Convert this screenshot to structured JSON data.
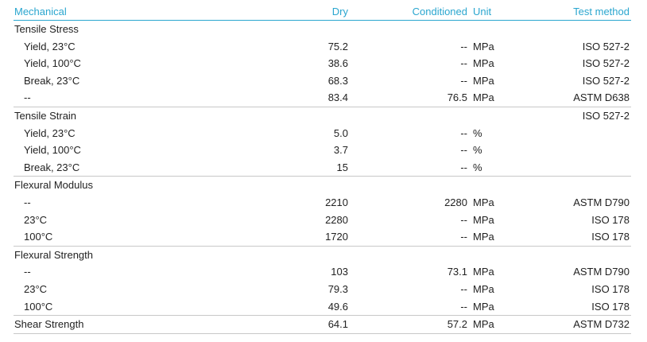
{
  "header": {
    "mechanical": "Mechanical",
    "dry": "Dry",
    "conditioned": "Conditioned",
    "unit": "Unit",
    "test_method": "Test method"
  },
  "rows": [
    {
      "label": "Tensile Stress",
      "dry": "",
      "conditioned": "",
      "unit": "",
      "test": ""
    },
    {
      "label": "Yield, 23°C",
      "dry": "75.2",
      "conditioned": "--",
      "unit": "MPa",
      "test": "ISO 527-2"
    },
    {
      "label": "Yield, 100°C",
      "dry": "38.6",
      "conditioned": "--",
      "unit": "MPa",
      "test": "ISO 527-2"
    },
    {
      "label": "Break, 23°C",
      "dry": "68.3",
      "conditioned": "--",
      "unit": "MPa",
      "test": "ISO 527-2"
    },
    {
      "label": "--",
      "dry": "83.4",
      "conditioned": "76.5",
      "unit": "MPa",
      "test": "ASTM D638"
    },
    {
      "label": "Tensile Strain",
      "dry": "",
      "conditioned": "",
      "unit": "",
      "test": "ISO 527-2"
    },
    {
      "label": "Yield, 23°C",
      "dry": "5.0",
      "conditioned": "--",
      "unit": "%",
      "test": ""
    },
    {
      "label": "Yield, 100°C",
      "dry": "3.7",
      "conditioned": "--",
      "unit": "%",
      "test": ""
    },
    {
      "label": "Break, 23°C",
      "dry": "15",
      "conditioned": "--",
      "unit": "%",
      "test": ""
    },
    {
      "label": "Flexural Modulus",
      "dry": "",
      "conditioned": "",
      "unit": "",
      "test": ""
    },
    {
      "label": "--",
      "dry": "2210",
      "conditioned": "2280",
      "unit": "MPa",
      "test": "ASTM D790"
    },
    {
      "label": "23°C",
      "dry": "2280",
      "conditioned": "--",
      "unit": "MPa",
      "test": "ISO 178"
    },
    {
      "label": "100°C",
      "dry": "1720",
      "conditioned": "--",
      "unit": "MPa",
      "test": "ISO 178"
    },
    {
      "label": "Flexural Strength",
      "dry": "",
      "conditioned": "",
      "unit": "",
      "test": ""
    },
    {
      "label": "--",
      "dry": "103",
      "conditioned": "73.1",
      "unit": "MPa",
      "test": "ASTM D790"
    },
    {
      "label": "23°C",
      "dry": "79.3",
      "conditioned": "--",
      "unit": "MPa",
      "test": "ISO 178"
    },
    {
      "label": "100°C",
      "dry": "49.6",
      "conditioned": "--",
      "unit": "MPa",
      "test": "ISO 178"
    },
    {
      "label": "Shear Strength",
      "dry": "64.1",
      "conditioned": "57.2",
      "unit": "MPa",
      "test": "ASTM D732"
    }
  ],
  "colors": {
    "header_text": "#2aa6cf",
    "header_rule": "#2aa6cf",
    "group_rule": "#c8c8c8",
    "body_text": "#222222"
  }
}
